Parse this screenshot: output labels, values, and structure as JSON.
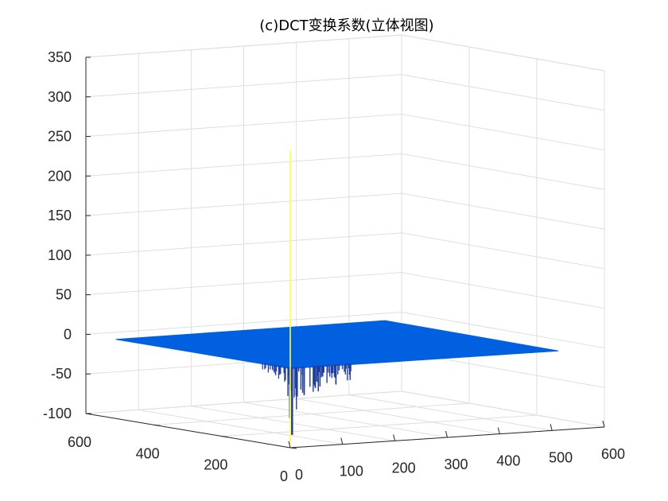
{
  "chart_data": {
    "type": "surface",
    "title": "(c)DCT变换系数(立体视图)",
    "xlabel": "",
    "ylabel": "",
    "zlabel": "",
    "x_ticks": [
      "0",
      "100",
      "200",
      "300",
      "400",
      "500",
      "600"
    ],
    "y_ticks": [
      "0",
      "200",
      "400",
      "600"
    ],
    "z_ticks": [
      "-100",
      "-50",
      "0",
      "50",
      "100",
      "150",
      "200",
      "250",
      "300",
      "350"
    ],
    "xlim": [
      0,
      600
    ],
    "ylim": [
      0,
      600
    ],
    "zlim": [
      -100,
      350
    ],
    "grid": true,
    "surface_extent": {
      "x": [
        0,
        512
      ],
      "y": [
        0,
        512
      ]
    },
    "baseline_value": 0,
    "dc_peak": {
      "x": 0,
      "y": 0,
      "z": 275
    },
    "min_dip": {
      "x": 10,
      "y": 10,
      "z": -85
    },
    "colors": {
      "surface": "#0060e0",
      "peak": "#ffff3a",
      "dip": "#1e3fa0"
    }
  }
}
